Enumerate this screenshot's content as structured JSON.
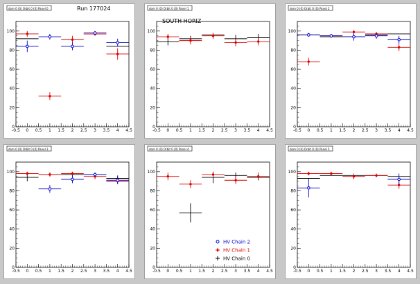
{
  "colors": {
    "chain2": "#0000cc",
    "chain1": "#dd0000",
    "chain0": "#000000"
  },
  "legend": {
    "entries": [
      {
        "label": "HV Chain 2",
        "marker": "open-circle",
        "color": "#0000cc"
      },
      {
        "label": "HV Chain 1",
        "marker": "star",
        "color": "#dd0000"
      },
      {
        "label": "HV Chain 0",
        "marker": "cross",
        "color": "#000000"
      }
    ]
  },
  "chart_data": [
    {
      "type": "scatter",
      "title": "dom 0 (0) Orbit 0 (0) Panel 0",
      "annotation": "Run 177024",
      "xlim": [
        -0.5,
        4.5
      ],
      "ylim": [
        0,
        110
      ],
      "xticks": [
        "-0.5",
        "0",
        "0.5",
        "1",
        "1.5",
        "2",
        "2.5",
        "3",
        "3.5",
        "4",
        "4.5"
      ],
      "yticks": [
        "0",
        "20",
        "40",
        "60",
        "80",
        "100"
      ],
      "series": [
        {
          "name": "HV Chain 2",
          "color": "#0000cc",
          "points": [
            {
              "x": 0,
              "y": 84,
              "xerr": 0.5,
              "yerr": 6
            },
            {
              "x": 1,
              "y": 94,
              "xerr": 0.5,
              "yerr": 3
            },
            {
              "x": 2,
              "y": 84,
              "xerr": 0.5,
              "yerr": 4
            },
            {
              "x": 3,
              "y": 98,
              "xerr": 0.5,
              "yerr": 2
            },
            {
              "x": 4,
              "y": 88,
              "xerr": 0.5,
              "yerr": 4
            }
          ]
        },
        {
          "name": "HV Chain 1",
          "color": "#dd0000",
          "points": [
            {
              "x": 0,
              "y": 97,
              "xerr": 0.5,
              "yerr": 3
            },
            {
              "x": 1,
              "y": 32,
              "xerr": 0.5,
              "yerr": 4
            },
            {
              "x": 2,
              "y": 91,
              "xerr": 0.5,
              "yerr": 4
            },
            {
              "x": 3,
              "y": 97,
              "xerr": 0.5,
              "yerr": 2
            },
            {
              "x": 4,
              "y": 76,
              "xerr": 0.5,
              "yerr": 6
            }
          ]
        },
        {
          "name": "HV Chain 0",
          "color": "#000000",
          "points": [
            {
              "x": 0,
              "y": 92,
              "xerr": 0.5,
              "yerr": 0
            },
            {
              "x": 3,
              "y": 97,
              "xerr": 0.5,
              "yerr": 0
            },
            {
              "x": 4,
              "y": 84,
              "xerr": 0.5,
              "yerr": 0
            }
          ]
        }
      ]
    },
    {
      "type": "scatter",
      "title": "dom 0 (0) Orbit 0 (0) Panel 1",
      "annotation": "SOUTH HORIZ",
      "xlim": [
        -0.5,
        4.5
      ],
      "ylim": [
        0,
        110
      ],
      "xticks": [
        "-0.5",
        "0",
        "0.5",
        "1",
        "1.5",
        "2",
        "2.5",
        "3",
        "3.5",
        "4",
        "4.5"
      ],
      "yticks": [
        "0",
        "20",
        "40",
        "60",
        "80",
        "100"
      ],
      "series": [
        {
          "name": "HV Chain 1",
          "color": "#dd0000",
          "points": [
            {
              "x": 0,
              "y": 94,
              "xerr": 0.5,
              "yerr": 3
            },
            {
              "x": 1,
              "y": 90,
              "xerr": 0.5,
              "yerr": 4
            },
            {
              "x": 2,
              "y": 95,
              "xerr": 0.5,
              "yerr": 3
            },
            {
              "x": 3,
              "y": 88,
              "xerr": 0.5,
              "yerr": 4
            },
            {
              "x": 4,
              "y": 89,
              "xerr": 0.5,
              "yerr": 4
            }
          ]
        },
        {
          "name": "HV Chain 0",
          "color": "#000000",
          "points": [
            {
              "x": 0,
              "y": 89,
              "xerr": 0.5,
              "yerr": 4
            },
            {
              "x": 1,
              "y": 92,
              "xerr": 0.5,
              "yerr": 3
            },
            {
              "x": 2,
              "y": 96,
              "xerr": 0.5,
              "yerr": 2
            },
            {
              "x": 3,
              "y": 92,
              "xerr": 0.5,
              "yerr": 4
            },
            {
              "x": 4,
              "y": 93,
              "xerr": 0.5,
              "yerr": 4
            }
          ]
        }
      ]
    },
    {
      "type": "scatter",
      "title": "dom 0 (0) Orbit 0 (0) Panel 2",
      "xlim": [
        -0.5,
        4.5
      ],
      "ylim": [
        0,
        110
      ],
      "xticks": [
        "-0.5",
        "0",
        "0.5",
        "1",
        "1.5",
        "2",
        "2.5",
        "3",
        "3.5",
        "4",
        "4.5"
      ],
      "yticks": [
        "0",
        "20",
        "40",
        "60",
        "80",
        "100"
      ],
      "series": [
        {
          "name": "HV Chain 2",
          "color": "#0000cc",
          "points": [
            {
              "x": 0,
              "y": 96,
              "xerr": 0.5,
              "yerr": 2
            },
            {
              "x": 1,
              "y": 95,
              "xerr": 0.5,
              "yerr": 2
            },
            {
              "x": 2,
              "y": 94,
              "xerr": 0.5,
              "yerr": 4
            },
            {
              "x": 3,
              "y": 95,
              "xerr": 0.5,
              "yerr": 3
            },
            {
              "x": 4,
              "y": 91,
              "xerr": 0.5,
              "yerr": 4
            }
          ]
        },
        {
          "name": "HV Chain 1",
          "color": "#dd0000",
          "points": [
            {
              "x": 0,
              "y": 68,
              "xerr": 0.5,
              "yerr": 4
            },
            {
              "x": 1,
              "y": 95,
              "xerr": 0.5,
              "yerr": 2
            },
            {
              "x": 2,
              "y": 99,
              "xerr": 0.5,
              "yerr": 2
            },
            {
              "x": 3,
              "y": 97,
              "xerr": 0.5,
              "yerr": 2
            },
            {
              "x": 4,
              "y": 83,
              "xerr": 0.5,
              "yerr": 4
            }
          ]
        },
        {
          "name": "HV Chain 0",
          "color": "#000000",
          "points": [
            {
              "x": 0,
              "y": 96,
              "xerr": 0.5,
              "yerr": 0
            },
            {
              "x": 1,
              "y": 94,
              "xerr": 0.5,
              "yerr": 0
            },
            {
              "x": 2,
              "y": 94,
              "xerr": 0.5,
              "yerr": 0
            },
            {
              "x": 3,
              "y": 96,
              "xerr": 0.5,
              "yerr": 0
            },
            {
              "x": 4,
              "y": 97,
              "xerr": 0.5,
              "yerr": 0
            }
          ]
        }
      ]
    },
    {
      "type": "scatter",
      "title": "dom 0 (0) Orbit 0 (0) Panel 3",
      "xlim": [
        -0.5,
        4.5
      ],
      "ylim": [
        0,
        110
      ],
      "xticks": [
        "-0.5",
        "0",
        "0.5",
        "1",
        "1.5",
        "2",
        "2.5",
        "3",
        "3.5",
        "4",
        "4.5"
      ],
      "yticks": [
        "0",
        "20",
        "40",
        "60",
        "80",
        "100"
      ],
      "series": [
        {
          "name": "HV Chain 2",
          "color": "#0000cc",
          "points": [
            {
              "x": 1,
              "y": 82,
              "xerr": 0.5,
              "yerr": 4
            },
            {
              "x": 2,
              "y": 92,
              "xerr": 0.5,
              "yerr": 4
            },
            {
              "x": 3,
              "y": 97,
              "xerr": 0.5,
              "yerr": 2
            },
            {
              "x": 4,
              "y": 91,
              "xerr": 0.5,
              "yerr": 4
            }
          ]
        },
        {
          "name": "HV Chain 1",
          "color": "#dd0000",
          "points": [
            {
              "x": 0,
              "y": 98,
              "xerr": 0.5,
              "yerr": 2
            },
            {
              "x": 1,
              "y": 97,
              "xerr": 0.5,
              "yerr": 2
            },
            {
              "x": 2,
              "y": 98,
              "xerr": 0.5,
              "yerr": 2
            },
            {
              "x": 3,
              "y": 95,
              "xerr": 0.5,
              "yerr": 3
            },
            {
              "x": 4,
              "y": 90,
              "xerr": 0.5,
              "yerr": 3
            }
          ]
        },
        {
          "name": "HV Chain 0",
          "color": "#000000",
          "points": [
            {
              "x": 0,
              "y": 94,
              "xerr": 0.5,
              "yerr": 4
            },
            {
              "x": 1,
              "y": 97,
              "xerr": 0.5,
              "yerr": 2
            },
            {
              "x": 2,
              "y": 97,
              "xerr": 0.5,
              "yerr": 2
            },
            {
              "x": 3,
              "y": 97,
              "xerr": 0.5,
              "yerr": 2
            },
            {
              "x": 4,
              "y": 93,
              "xerr": 0.5,
              "yerr": 3
            }
          ]
        }
      ]
    },
    {
      "type": "scatter",
      "title": "dom 0 (0) Orbit 0 (0) Panel 4",
      "xlim": [
        -0.5,
        4.5
      ],
      "ylim": [
        0,
        110
      ],
      "xticks": [
        "-0.5",
        "0",
        "0.5",
        "1",
        "1.5",
        "2",
        "2.5",
        "3",
        "3.5",
        "4",
        "4.5"
      ],
      "yticks": [
        "0",
        "20",
        "40",
        "60",
        "80",
        "100"
      ],
      "series": [
        {
          "name": "HV Chain 1",
          "color": "#dd0000",
          "points": [
            {
              "x": 0,
              "y": 95,
              "xerr": 0.5,
              "yerr": 4
            },
            {
              "x": 1,
              "y": 87,
              "xerr": 0.5,
              "yerr": 4
            },
            {
              "x": 2,
              "y": 97,
              "xerr": 0.5,
              "yerr": 3
            },
            {
              "x": 3,
              "y": 91,
              "xerr": 0.5,
              "yerr": 4
            },
            {
              "x": 4,
              "y": 95,
              "xerr": 0.5,
              "yerr": 4
            }
          ]
        },
        {
          "name": "HV Chain 0",
          "color": "#000000",
          "points": [
            {
              "x": 1,
              "y": 57,
              "xerr": 0.5,
              "yerr": 10
            },
            {
              "x": 2,
              "y": 94,
              "xerr": 0.5,
              "yerr": 6
            },
            {
              "x": 3,
              "y": 96,
              "xerr": 0.5,
              "yerr": 3
            },
            {
              "x": 4,
              "y": 94,
              "xerr": 0.5,
              "yerr": 3
            }
          ]
        }
      ]
    },
    {
      "type": "scatter",
      "title": "dom 0 (0) Orbit 0 (0) Panel 5",
      "xlim": [
        -0.5,
        4.5
      ],
      "ylim": [
        0,
        110
      ],
      "xticks": [
        "-0.5",
        "0",
        "0.5",
        "1",
        "1.5",
        "2",
        "2.5",
        "3",
        "3.5",
        "4",
        "4.5"
      ],
      "yticks": [
        "0",
        "20",
        "40",
        "60",
        "80",
        "100"
      ],
      "series": [
        {
          "name": "HV Chain 2",
          "color": "#0000cc",
          "points": [
            {
              "x": 0,
              "y": 83,
              "xerr": 0.5,
              "yerr": 10
            },
            {
              "x": 4,
              "y": 92,
              "xerr": 0.5,
              "yerr": 6
            }
          ]
        },
        {
          "name": "HV Chain 1",
          "color": "#dd0000",
          "points": [
            {
              "x": 0,
              "y": 98,
              "xerr": 0.5,
              "yerr": 2
            },
            {
              "x": 1,
              "y": 98,
              "xerr": 0.5,
              "yerr": 2
            },
            {
              "x": 2,
              "y": 95,
              "xerr": 0.5,
              "yerr": 3
            },
            {
              "x": 3,
              "y": 96,
              "xerr": 0.5,
              "yerr": 2
            },
            {
              "x": 4,
              "y": 86,
              "xerr": 0.5,
              "yerr": 4
            }
          ]
        },
        {
          "name": "HV Chain 0",
          "color": "#000000",
          "points": [
            {
              "x": 0,
              "y": 93,
              "xerr": 0.5,
              "yerr": 0
            },
            {
              "x": 1,
              "y": 96,
              "xerr": 0.5,
              "yerr": 0
            },
            {
              "x": 2,
              "y": 96,
              "xerr": 0.5,
              "yerr": 0
            },
            {
              "x": 3,
              "y": 96,
              "xerr": 0.5,
              "yerr": 0
            },
            {
              "x": 4,
              "y": 95,
              "xerr": 0.5,
              "yerr": 0
            }
          ]
        }
      ]
    }
  ]
}
